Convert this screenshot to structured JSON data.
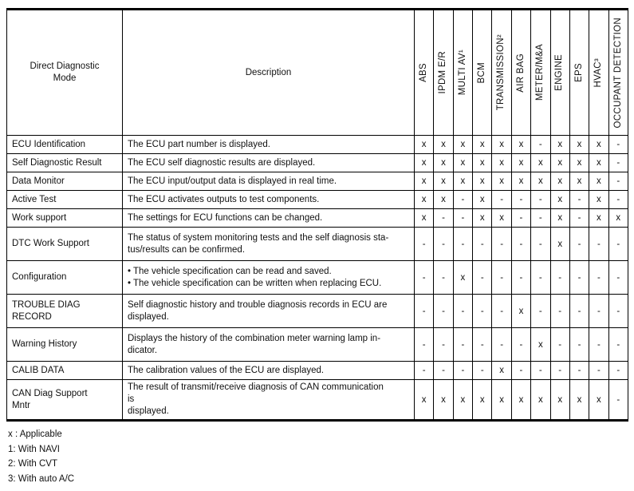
{
  "table": {
    "col1_header": "Direct Diagnostic\nMode",
    "col2_header": "Description",
    "system_columns": [
      "ABS",
      "IPDM E/R",
      "MULTI AV¹",
      "BCM",
      "TRANSMISSION²",
      "AIR BAG",
      "METER/M&A",
      "ENGINE",
      "EPS",
      "HVAC³",
      "OCCUPANT DETECTION"
    ],
    "rows": [
      {
        "mode": "ECU Identification",
        "description": "The ECU part number is displayed.",
        "values": [
          "x",
          "x",
          "x",
          "x",
          "x",
          "x",
          "-",
          "x",
          "x",
          "x",
          "-"
        ]
      },
      {
        "mode": "Self Diagnostic Result",
        "description": "The ECU self diagnostic results are displayed.",
        "values": [
          "x",
          "x",
          "x",
          "x",
          "x",
          "x",
          "x",
          "x",
          "x",
          "x",
          "-"
        ]
      },
      {
        "mode": "Data Monitor",
        "description": "The ECU input/output data is displayed in real time.",
        "values": [
          "x",
          "x",
          "x",
          "x",
          "x",
          "x",
          "x",
          "x",
          "x",
          "x",
          "-"
        ]
      },
      {
        "mode": "Active Test",
        "description": "The ECU activates outputs to test components.",
        "values": [
          "x",
          "x",
          "-",
          "x",
          "-",
          "-",
          "-",
          "x",
          "-",
          "x",
          "-"
        ]
      },
      {
        "mode": "Work support",
        "description": "The settings for ECU functions can be changed.",
        "values": [
          "x",
          "-",
          "-",
          "x",
          "x",
          "-",
          "-",
          "x",
          "-",
          "x",
          "x"
        ]
      },
      {
        "mode": "DTC Work Support",
        "description": "The status of system monitoring tests and the self diagnosis sta-\ntus/results can be confirmed.",
        "values": [
          "-",
          "-",
          "-",
          "-",
          "-",
          "-",
          "-",
          "x",
          "-",
          "-",
          "-"
        ]
      },
      {
        "mode": "Configuration",
        "description": "•  The vehicle specification can be read and saved.\n•  The vehicle specification can be written when replacing ECU.",
        "values": [
          "-",
          "-",
          "x",
          "-",
          "-",
          "-",
          "-",
          "-",
          "-",
          "-",
          "-"
        ]
      },
      {
        "mode": "TROUBLE DIAG\nRECORD",
        "description": "Self diagnostic history and trouble diagnosis records in ECU are\ndisplayed.",
        "values": [
          "-",
          "-",
          "-",
          "-",
          "-",
          "x",
          "-",
          "-",
          "-",
          "-",
          "-"
        ]
      },
      {
        "mode": "Warning History",
        "description": "Displays the history of the combination meter warning lamp in-\ndicator.",
        "values": [
          "-",
          "-",
          "-",
          "-",
          "-",
          "-",
          "x",
          "-",
          "-",
          "-",
          "-"
        ]
      },
      {
        "mode": "CALIB DATA",
        "description": "The calibration values of the ECU are displayed.",
        "values": [
          "-",
          "-",
          "-",
          "-",
          "x",
          "-",
          "-",
          "-",
          "-",
          "-",
          "-"
        ]
      },
      {
        "mode": "CAN Diag Support\nMntr",
        "description": "The result of transmit/receive diagnosis of CAN communication\nis\ndisplayed.",
        "values": [
          "x",
          "x",
          "x",
          "x",
          "x",
          "x",
          "x",
          "x",
          "x",
          "x",
          "-"
        ]
      }
    ],
    "notes": [
      "x : Applicable",
      "1: With NAVI",
      "2: With CVT",
      "3: With auto A/C"
    ]
  }
}
